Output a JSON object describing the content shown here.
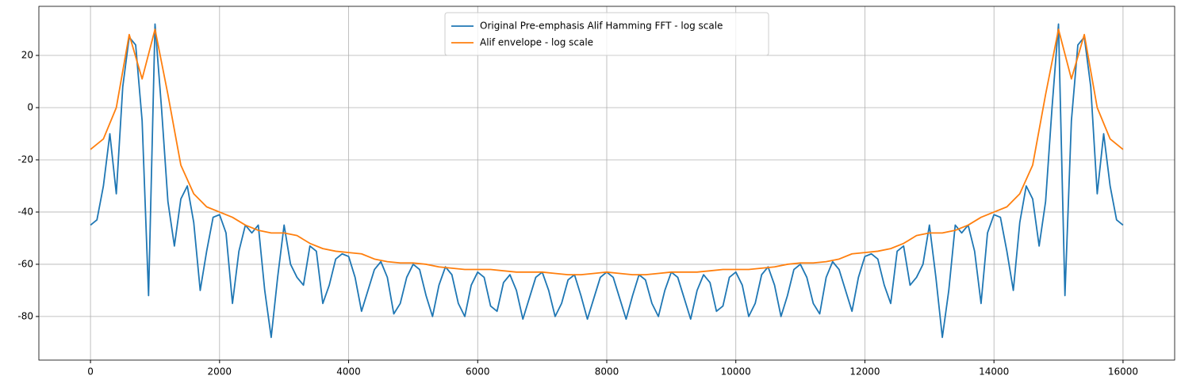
{
  "chart_data": {
    "type": "line",
    "series": [
      {
        "name": "Original Pre-emphasis Alif Hamming FFT - log scale",
        "color": "#1f77b4",
        "x": [
          0,
          100,
          200,
          300,
          400,
          500,
          600,
          700,
          800,
          900,
          1000,
          1100,
          1200,
          1300,
          1400,
          1500,
          1600,
          1700,
          1800,
          1900,
          2000,
          2100,
          2200,
          2300,
          2400,
          2500,
          2600,
          2700,
          2800,
          2900,
          3000,
          3100,
          3200,
          3300,
          3400,
          3500,
          3600,
          3700,
          3800,
          3900,
          4000,
          4100,
          4200,
          4300,
          4400,
          4500,
          4600,
          4700,
          4800,
          4900,
          5000,
          5100,
          5200,
          5300,
          5400,
          5500,
          5600,
          5700,
          5800,
          5900,
          6000,
          6100,
          6200,
          6300,
          6400,
          6500,
          6600,
          6700,
          6800,
          6900,
          7000,
          7100,
          7200,
          7300,
          7400,
          7500,
          7600,
          7700,
          7800,
          7900,
          8000,
          8100,
          8200,
          8300,
          8400,
          8500,
          8600,
          8700,
          8800,
          8900,
          9000,
          9100,
          9200,
          9300,
          9400,
          9500,
          9600,
          9700,
          9800,
          9900,
          10000,
          10100,
          10200,
          10300,
          10400,
          10500,
          10600,
          10700,
          10800,
          10900,
          11000,
          11100,
          11200,
          11300,
          11400,
          11500,
          11600,
          11700,
          11800,
          11900,
          12000,
          12100,
          12200,
          12300,
          12400,
          12500,
          12600,
          12700,
          12800,
          12900,
          13000,
          13100,
          13200,
          13300,
          13400,
          13500,
          13600,
          13700,
          13800,
          13900,
          14000,
          14100,
          14200,
          14300,
          14400,
          14500,
          14600,
          14700,
          14800,
          14900,
          15000,
          15100,
          15200,
          15300,
          15400,
          15500,
          15600,
          15700,
          15800,
          15900,
          16000
        ],
        "values": [
          -45,
          -43,
          -30,
          -10,
          -33,
          8,
          27,
          24,
          -5,
          -72,
          32,
          0,
          -36,
          -53,
          -35,
          -30,
          -44,
          -70,
          -55,
          -42,
          -41,
          -48,
          -75,
          -55,
          -45,
          -48,
          -45,
          -70,
          -88,
          -65,
          -45,
          -60,
          -65,
          -68,
          -53,
          -55,
          -75,
          -68,
          -58,
          -56,
          -57,
          -65,
          -78,
          -70,
          -62,
          -59,
          -65,
          -79,
          -75,
          -65,
          -60,
          -62,
          -72,
          -80,
          -68,
          -61,
          -64,
          -75,
          -80,
          -68,
          -63,
          -65,
          -76,
          -78,
          -67,
          -64,
          -70,
          -81,
          -73,
          -65,
          -63,
          -70,
          -80,
          -75,
          -66,
          -64,
          -72,
          -81,
          -73,
          -65,
          -63,
          -65,
          -73,
          -81,
          -72,
          -64,
          -66,
          -75,
          -80,
          -70,
          -63,
          -65,
          -73,
          -81,
          -70,
          -64,
          -67,
          -78,
          -76,
          -65,
          -63,
          -68,
          -80,
          -75,
          -64,
          -61,
          -68,
          -80,
          -72,
          -62,
          -60,
          -65,
          -75,
          -79,
          -65,
          -59,
          -62,
          -70,
          -78,
          -65,
          -57,
          -56,
          -58,
          -68,
          -75,
          -55,
          -53,
          -68,
          -65,
          -60,
          -45,
          -65,
          -88,
          -70,
          -45,
          -48,
          -45,
          -55,
          -75,
          -48,
          -41,
          -42,
          -55,
          -70,
          -44,
          -30,
          -35,
          -53,
          -36,
          0,
          32,
          -72,
          -5,
          24,
          27,
          8,
          -33,
          -10,
          -30,
          -43,
          -45
        ]
      },
      {
        "name": "Alif envelope - log scale",
        "color": "#ff7f0e",
        "x": [
          0,
          200,
          400,
          600,
          800,
          1000,
          1200,
          1400,
          1600,
          1800,
          2000,
          2200,
          2400,
          2600,
          2800,
          3000,
          3200,
          3400,
          3600,
          3800,
          4000,
          4200,
          4400,
          4600,
          4800,
          5000,
          5200,
          5400,
          5600,
          5800,
          6000,
          6200,
          6400,
          6600,
          6800,
          7000,
          7200,
          7400,
          7600,
          7800,
          8000,
          8200,
          8400,
          8600,
          8800,
          9000,
          9200,
          9400,
          9600,
          9800,
          10000,
          10200,
          10400,
          10600,
          10800,
          11000,
          11200,
          11400,
          11600,
          11800,
          12000,
          12200,
          12400,
          12600,
          12800,
          13000,
          13200,
          13400,
          13600,
          13800,
          14000,
          14200,
          14400,
          14600,
          14800,
          15000,
          15200,
          15400,
          15600,
          15800,
          16000
        ],
        "values": [
          -16,
          -12,
          0,
          28,
          11,
          30,
          5,
          -22,
          -33,
          -38,
          -40,
          -42,
          -45,
          -47,
          -48,
          -48,
          -49,
          -52,
          -54,
          -55,
          -55.5,
          -56,
          -58,
          -59,
          -59.5,
          -59.5,
          -60,
          -61,
          -61.5,
          -62,
          -62,
          -62,
          -62.5,
          -63,
          -63,
          -63,
          -63.5,
          -64,
          -64,
          -63.5,
          -63,
          -63.5,
          -64,
          -64,
          -63.5,
          -63,
          -63,
          -63,
          -62.5,
          -62,
          -62,
          -62,
          -61.5,
          -61,
          -60,
          -59.5,
          -59.5,
          -59,
          -58,
          -56,
          -55.5,
          -55,
          -54,
          -52,
          -49,
          -48,
          -48,
          -47,
          -45,
          -42,
          -40,
          -38,
          -33,
          -22,
          5,
          30,
          11,
          28,
          0,
          -12,
          -16
        ]
      }
    ],
    "xlim": [
      -800,
      16800
    ],
    "ylim": [
      -96.7,
      38.8
    ],
    "xticks": [
      0,
      2000,
      4000,
      6000,
      8000,
      10000,
      12000,
      14000,
      16000
    ],
    "yticks": [
      -80,
      -60,
      -40,
      -20,
      0,
      20
    ],
    "grid": true,
    "legend": "upper center"
  }
}
